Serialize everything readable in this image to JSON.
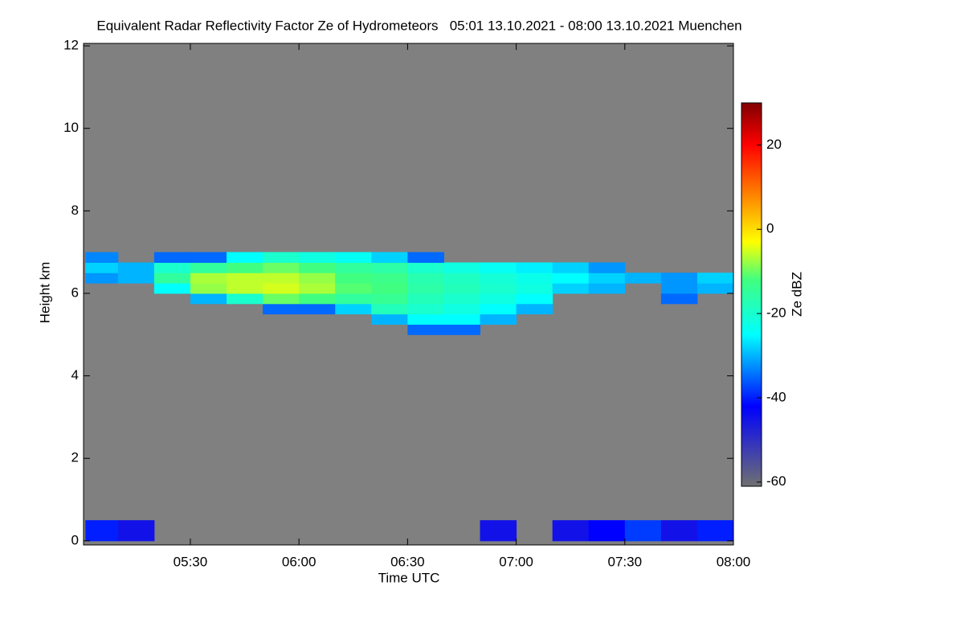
{
  "chart_data": {
    "type": "heatmap",
    "title": "Equivalent Radar Reflectivity Factor Ze of Hydrometeors   05:01 13.10.2021 - 08:00 13.10.2021 Muenchen",
    "xlabel": "Time UTC",
    "ylabel": "Height km",
    "colorbar_label": "Ze dBZ",
    "background": "#808080",
    "xlim": [
      300.5,
      480
    ],
    "xticks": [
      {
        "value": 330,
        "label": "05:30"
      },
      {
        "value": 360,
        "label": "06:00"
      },
      {
        "value": 390,
        "label": "06:30"
      },
      {
        "value": 420,
        "label": "07:00"
      },
      {
        "value": 450,
        "label": "07:30"
      },
      {
        "value": 480,
        "label": "08:00"
      }
    ],
    "ylim": [
      -0.1,
      12.06
    ],
    "yticks": [
      0,
      2,
      4,
      6,
      8,
      10,
      12
    ],
    "clim": [
      -61,
      30
    ],
    "cticks": [
      -60,
      -40,
      -20,
      0,
      20
    ],
    "colorstops": [
      {
        "value": -61,
        "color": "#707070"
      },
      {
        "value": -42,
        "color": "#0000ff"
      },
      {
        "value": -25,
        "color": "#00ffff"
      },
      {
        "value": -12,
        "color": "#40ff80"
      },
      {
        "value": -3,
        "color": "#ffff00"
      },
      {
        "value": 20,
        "color": "#ff0000"
      },
      {
        "value": 30,
        "color": "#800000"
      }
    ],
    "x_edges": [
      301,
      310,
      320,
      330,
      340,
      350,
      360,
      370,
      380,
      390,
      400,
      410,
      420,
      430,
      440,
      450,
      460,
      470,
      480
    ],
    "y_edges": [
      0,
      0.5,
      5.0,
      5.25,
      5.5,
      5.75,
      6.0,
      6.25,
      6.5,
      6.75,
      7.0
    ],
    "z": [
      [
        -40,
        -45,
        null,
        null,
        null,
        null,
        null,
        null,
        null,
        null,
        null,
        -45,
        null,
        -45,
        -42,
        -38,
        -45,
        -40
      ],
      [
        null,
        null,
        null,
        null,
        null,
        null,
        null,
        null,
        null,
        null,
        null,
        null,
        null,
        null,
        null,
        null,
        null,
        null
      ],
      [
        null,
        null,
        null,
        null,
        null,
        null,
        null,
        null,
        null,
        -35,
        -35,
        null,
        null,
        null,
        null,
        null,
        null,
        null
      ],
      [
        null,
        null,
        null,
        null,
        null,
        null,
        null,
        null,
        -30,
        -25,
        -25,
        -30,
        null,
        null,
        null,
        null,
        null,
        null
      ],
      [
        null,
        null,
        null,
        null,
        null,
        -35,
        -35,
        -28,
        -18,
        -20,
        -22,
        -25,
        -30,
        null,
        null,
        null,
        null,
        null
      ],
      [
        null,
        null,
        null,
        -30,
        -20,
        -10,
        -12,
        -15,
        -14,
        -18,
        -20,
        -22,
        -25,
        null,
        null,
        null,
        -35,
        null
      ],
      [
        null,
        null,
        -25,
        -8,
        -6,
        -5,
        -7,
        -11,
        -12,
        -16,
        -18,
        -20,
        -22,
        -28,
        -30,
        null,
        -32,
        -30
      ],
      [
        -32,
        -30,
        -15,
        -7,
        -6,
        -6,
        -8,
        -12,
        -13,
        -17,
        -19,
        -21,
        -23,
        -25,
        -28,
        -30,
        -32,
        -28
      ],
      [
        -28,
        -30,
        -20,
        -15,
        -12,
        -10,
        -12,
        -15,
        -16,
        -20,
        -22,
        -24,
        -26,
        -28,
        -32,
        null,
        null,
        null
      ],
      [
        -33,
        null,
        -35,
        -35,
        -25,
        -20,
        -22,
        -24,
        -28,
        -35,
        null,
        null,
        null,
        null,
        null,
        null,
        null,
        null
      ]
    ]
  }
}
